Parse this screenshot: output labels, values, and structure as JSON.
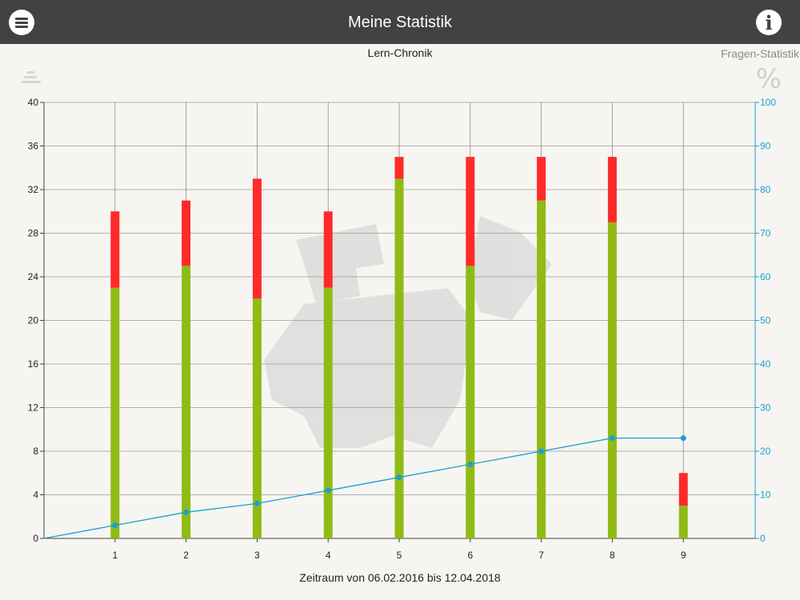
{
  "header": {
    "title": "Meine Statistik",
    "menu_icon": "menu-icon",
    "info_icon": "info-icon",
    "info_glyph": "i"
  },
  "tabs": {
    "left": "Lern-Chronik",
    "right": "Fragen-Statistik"
  },
  "toolbar": {
    "sort_icon": "sort-icon",
    "percent_icon": "percent-icon",
    "percent_glyph": "%"
  },
  "colors": {
    "topbar": "#424242",
    "correct": "#8fbb14",
    "wrong": "#ff2a2a",
    "line": "#1b9fd1",
    "background": "#f6f5f1"
  },
  "chart_data": {
    "type": "bar",
    "stacked": true,
    "categories": [
      "1",
      "2",
      "3",
      "4",
      "5",
      "6",
      "7",
      "8",
      "9"
    ],
    "series": [
      {
        "values": [
          23,
          25,
          22,
          23,
          33,
          25,
          31,
          29,
          3
        ]
      },
      {
        "values": [
          7,
          6,
          11,
          7,
          2,
          10,
          4,
          6,
          3
        ]
      }
    ],
    "line_series": {
      "axis": "right",
      "x": [
        0,
        1,
        2,
        3,
        4,
        5,
        6,
        7,
        8,
        9
      ],
      "values": [
        0,
        3,
        6,
        8,
        11,
        14,
        17,
        20,
        23,
        23
      ]
    },
    "xlabel": "Zeitraum von 06.02.2016 bis 12.04.2018",
    "ylim": [
      0,
      40
    ],
    "yticks": [
      0,
      4,
      8,
      12,
      16,
      20,
      24,
      28,
      32,
      36,
      40
    ],
    "y2lim": [
      0,
      100
    ],
    "y2ticks": [
      0,
      10,
      20,
      30,
      40,
      50,
      60,
      70,
      80,
      90,
      100
    ],
    "grid": true,
    "legend": "none"
  }
}
